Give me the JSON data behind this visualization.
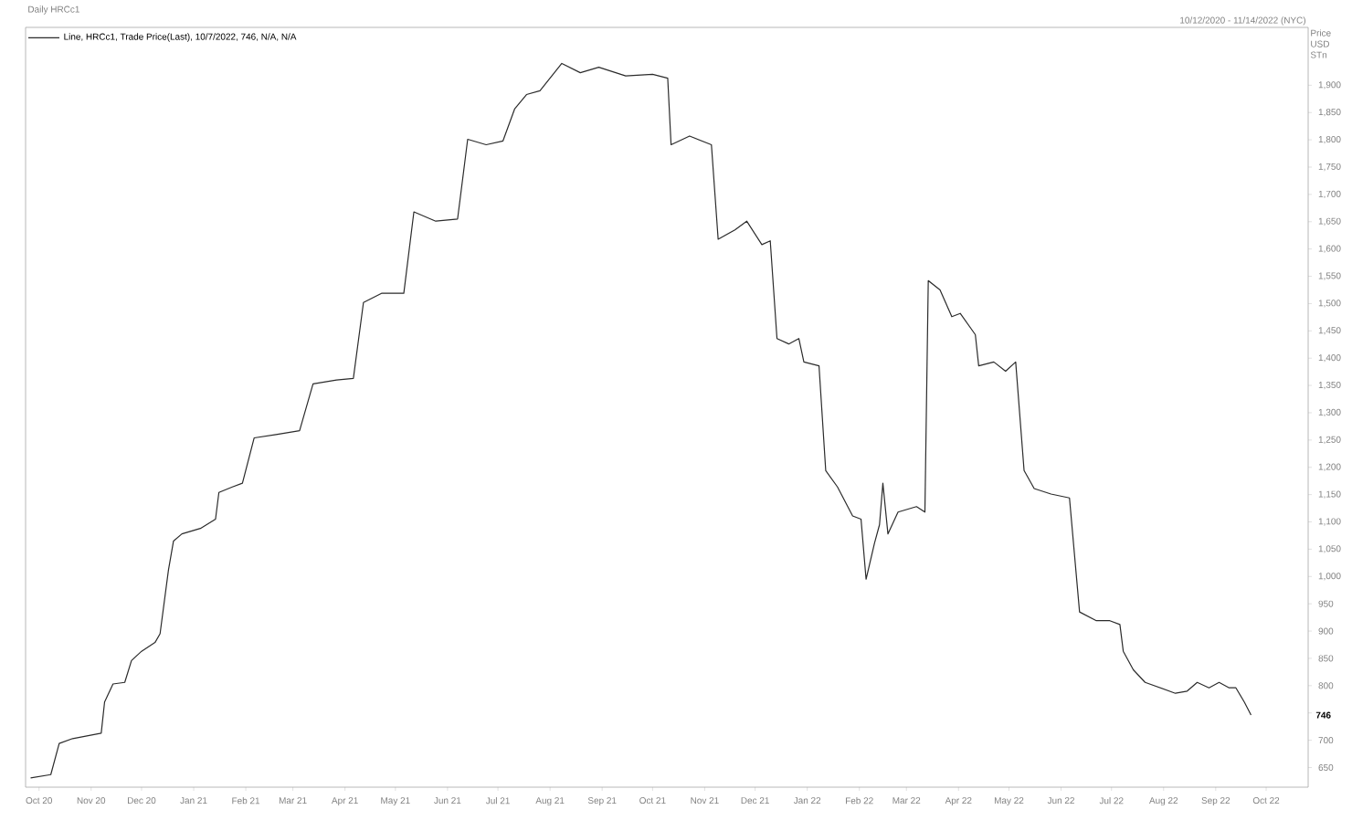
{
  "chart_data": {
    "type": "line",
    "title": "Daily HRCc1",
    "subtitle": "10/12/2020 - 11/14/2022 (NYC)",
    "ylabel": "Price USD STn",
    "x": [
      "2020-10-11",
      "2020-10-23",
      "2020-10-28",
      "2020-11-05",
      "2020-11-22",
      "2020-11-24",
      "2020-11-29",
      "2020-12-06",
      "2020-12-10",
      "2020-12-16",
      "2020-12-24",
      "2020-12-27",
      "2021-01-01",
      "2021-01-04",
      "2021-01-09",
      "2021-01-20",
      "2021-01-29",
      "2021-01-31",
      "2021-02-08",
      "2021-02-14",
      "2021-02-21",
      "2021-03-06",
      "2021-03-20",
      "2021-03-28",
      "2021-04-11",
      "2021-04-21",
      "2021-04-27",
      "2021-05-08",
      "2021-05-21",
      "2021-05-27",
      "2021-06-09",
      "2021-06-22",
      "2021-06-28",
      "2021-07-09",
      "2021-07-19",
      "2021-07-26",
      "2021-08-02",
      "2021-08-10",
      "2021-08-23",
      "2021-09-03",
      "2021-09-14",
      "2021-09-30",
      "2021-10-16",
      "2021-10-25",
      "2021-10-27",
      "2021-11-07",
      "2021-11-20",
      "2021-11-24",
      "2021-12-04",
      "2021-12-11",
      "2021-12-20",
      "2021-12-25",
      "2021-12-29",
      "2022-01-05",
      "2022-01-11",
      "2022-01-14",
      "2022-01-23",
      "2022-01-27",
      "2022-02-03",
      "2022-02-12",
      "2022-02-17",
      "2022-02-20",
      "2022-02-25",
      "2022-02-28",
      "2022-03-02",
      "2022-03-05",
      "2022-03-11",
      "2022-03-22",
      "2022-03-27",
      "2022-03-29",
      "2022-04-05",
      "2022-04-12",
      "2022-04-17",
      "2022-04-26",
      "2022-04-28",
      "2022-05-07",
      "2022-05-14",
      "2022-05-20",
      "2022-05-25",
      "2022-05-31",
      "2022-06-10",
      "2022-06-21",
      "2022-06-27",
      "2022-07-07",
      "2022-07-15",
      "2022-07-21",
      "2022-07-23",
      "2022-07-29",
      "2022-08-05",
      "2022-08-14",
      "2022-08-23",
      "2022-08-30",
      "2022-09-05",
      "2022-09-12",
      "2022-09-18",
      "2022-09-24",
      "2022-09-28",
      "2022-10-03",
      "2022-10-07"
    ],
    "series": [
      {
        "name": "Line, HRCc1, Trade Price(Last), 10/7/2022, 746, N/A, N/A",
        "color": "#2b2b2b",
        "values": [
          631,
          637,
          694,
          703,
          713,
          770,
          803,
          806,
          846,
          863,
          879,
          895,
          1012,
          1065,
          1078,
          1088,
          1105,
          1154,
          1164,
          1171,
          1254,
          1260,
          1267,
          1353,
          1360,
          1363,
          1502,
          1519,
          1519,
          1668,
          1651,
          1655,
          1801,
          1791,
          1798,
          1857,
          1883,
          1890,
          1940,
          1923,
          1933,
          1917,
          1920,
          1913,
          1791,
          1807,
          1791,
          1618,
          1635,
          1651,
          1608,
          1615,
          1436,
          1426,
          1436,
          1393,
          1386,
          1194,
          1164,
          1111,
          1105,
          995,
          1061,
          1095,
          1171,
          1078,
          1118,
          1128,
          1118,
          1542,
          1525,
          1476,
          1482,
          1443,
          1386,
          1393,
          1376,
          1393,
          1194,
          1161,
          1151,
          1144,
          935,
          919,
          919,
          912,
          863,
          829,
          806,
          796,
          786,
          790,
          806,
          796,
          806,
          796,
          796,
          770,
          746
        ]
      }
    ],
    "xlim": [
      "2020-10-08",
      "2022-11-10"
    ],
    "xticks": [
      {
        "value": "2020-10-16",
        "label": "Oct 20"
      },
      {
        "value": "2020-11-16",
        "label": "Nov 20"
      },
      {
        "value": "2020-12-16",
        "label": "Dec 20"
      },
      {
        "value": "2021-01-16",
        "label": "Jan 21"
      },
      {
        "value": "2021-02-16",
        "label": "Feb 21"
      },
      {
        "value": "2021-03-16",
        "label": "Mar 21"
      },
      {
        "value": "2021-04-16",
        "label": "Apr 21"
      },
      {
        "value": "2021-05-16",
        "label": "May 21"
      },
      {
        "value": "2021-06-16",
        "label": "Jun 21"
      },
      {
        "value": "2021-07-16",
        "label": "Jul 21"
      },
      {
        "value": "2021-08-16",
        "label": "Aug 21"
      },
      {
        "value": "2021-09-16",
        "label": "Sep 21"
      },
      {
        "value": "2021-10-16",
        "label": "Oct 21"
      },
      {
        "value": "2021-11-16",
        "label": "Nov 21"
      },
      {
        "value": "2021-12-16",
        "label": "Dec 21"
      },
      {
        "value": "2022-01-16",
        "label": "Jan 22"
      },
      {
        "value": "2022-02-16",
        "label": "Feb 22"
      },
      {
        "value": "2022-03-16",
        "label": "Mar 22"
      },
      {
        "value": "2022-04-16",
        "label": "Apr 22"
      },
      {
        "value": "2022-05-16",
        "label": "May 22"
      },
      {
        "value": "2022-06-16",
        "label": "Jun 22"
      },
      {
        "value": "2022-07-16",
        "label": "Jul 22"
      },
      {
        "value": "2022-08-16",
        "label": "Aug 22"
      },
      {
        "value": "2022-09-16",
        "label": "Sep 22"
      },
      {
        "value": "2022-10-16",
        "label": "Oct 22"
      }
    ],
    "ylim": [
      614,
      2006
    ],
    "yticks": [
      650,
      700,
      {
        "value": 750,
        "label": null
      },
      800,
      850,
      900,
      950,
      {
        "value": 1000,
        "label": "1,000"
      },
      {
        "value": 1050,
        "label": "1,050"
      },
      {
        "value": 1100,
        "label": "1,100"
      },
      {
        "value": 1150,
        "label": "1,150"
      },
      {
        "value": 1200,
        "label": "1,200"
      },
      {
        "value": 1250,
        "label": "1,250"
      },
      {
        "value": 1300,
        "label": "1,300"
      },
      {
        "value": 1350,
        "label": "1,350"
      },
      {
        "value": 1400,
        "label": "1,400"
      },
      {
        "value": 1450,
        "label": "1,450"
      },
      {
        "value": 1500,
        "label": "1,500"
      },
      {
        "value": 1550,
        "label": "1,550"
      },
      {
        "value": 1600,
        "label": "1,600"
      },
      {
        "value": 1650,
        "label": "1,650"
      },
      {
        "value": 1700,
        "label": "1,700"
      },
      {
        "value": 1750,
        "label": "1,750"
      },
      {
        "value": 1800,
        "label": "1,800"
      },
      {
        "value": 1850,
        "label": "1,850"
      },
      {
        "value": 1900,
        "label": "1,900"
      }
    ],
    "annotations": [
      "746"
    ],
    "legend": "top left",
    "grid": false,
    "marker": "none",
    "line_style": "solid"
  }
}
